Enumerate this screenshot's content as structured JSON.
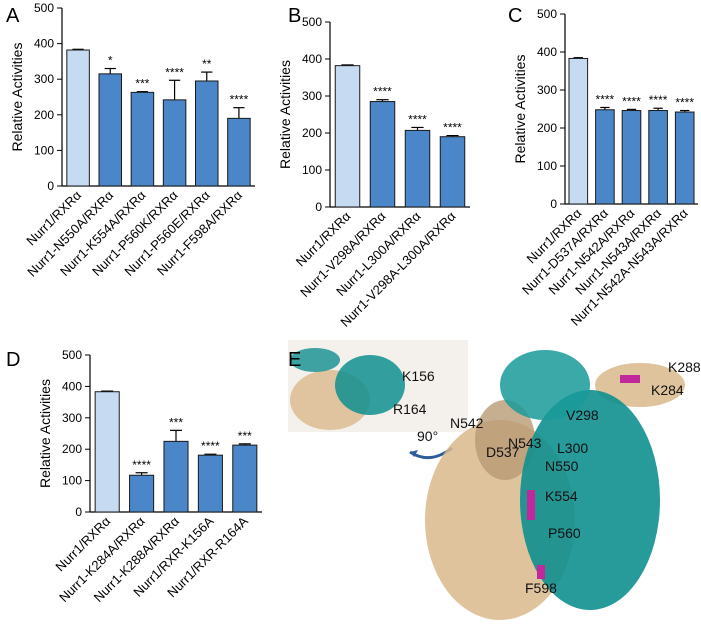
{
  "chart_data": [
    {
      "type": "bar",
      "panel": "A",
      "ylabel": "Relative Activities",
      "categories": [
        "Nurr1/RXRα",
        "Nurr1-N550A/RXRα",
        "Nurr1-K554A/RXRα",
        "Nurr1-P560K/RXRα",
        "Nurr1-P560E/RXRα",
        "Nurr1-F598A/RXRα"
      ],
      "values": [
        382,
        315,
        263,
        242,
        295,
        190
      ],
      "errors": [
        2,
        15,
        2,
        55,
        25,
        30
      ],
      "significance": [
        null,
        "*",
        "***",
        "****",
        "**",
        "****"
      ],
      "colors": [
        "#c6daf2",
        "#4a86c8",
        "#4a86c8",
        "#4a86c8",
        "#4a86c8",
        "#4a86c8"
      ],
      "ylim": [
        0,
        500
      ],
      "yticks": [
        0,
        100,
        200,
        300,
        400,
        500
      ]
    },
    {
      "type": "bar",
      "panel": "B",
      "ylabel": "Relative Activities",
      "categories": [
        "Nurr1/RXRα",
        "Nurr1-V298A/RXRα",
        "Nurr1-L300A/RXRα",
        "Nurr1-V298A-L300A/RXRα"
      ],
      "values": [
        382,
        285,
        207,
        190
      ],
      "errors": [
        2,
        5,
        8,
        3
      ],
      "significance": [
        null,
        "****",
        "****",
        "****"
      ],
      "colors": [
        "#c6daf2",
        "#4a86c8",
        "#4a86c8",
        "#4a86c8"
      ],
      "ylim": [
        0,
        500
      ],
      "yticks": [
        0,
        100,
        200,
        300,
        400,
        500
      ]
    },
    {
      "type": "bar",
      "panel": "C",
      "ylabel": "Relative Activities",
      "categories": [
        "Nurr1/RXRα",
        "Nurr1-D537A/RXRα",
        "Nurr1-N542A/RXRα",
        "Nurr1-N543A/RXRα",
        "Nurr1-N542A-N543A/RXRα"
      ],
      "values": [
        383,
        248,
        246,
        246,
        242
      ],
      "errors": [
        2,
        6,
        3,
        6,
        4
      ],
      "significance": [
        null,
        "****",
        "****",
        "****",
        "****"
      ],
      "colors": [
        "#c6daf2",
        "#4a86c8",
        "#4a86c8",
        "#4a86c8",
        "#4a86c8"
      ],
      "ylim": [
        0,
        500
      ],
      "yticks": [
        0,
        100,
        200,
        300,
        400,
        500
      ]
    },
    {
      "type": "bar",
      "panel": "D",
      "ylabel": "Relative Activities",
      "categories": [
        "Nurr1/RXRα",
        "Nurr1-K284A/RXRα",
        "Nurr1-K288A/RXRα",
        "Nurr1/RXR-K156A",
        "Nurr1/RXR-R164A"
      ],
      "values": [
        383,
        117,
        225,
        181,
        213
      ],
      "errors": [
        2,
        8,
        35,
        3,
        4
      ],
      "significance": [
        null,
        "****",
        "***",
        "****",
        "***"
      ],
      "colors": [
        "#c6daf2",
        "#4a86c8",
        "#4a86c8",
        "#4a86c8",
        "#4a86c8"
      ],
      "ylim": [
        0,
        500
      ],
      "yticks": [
        0,
        100,
        200,
        300,
        400,
        500
      ]
    }
  ],
  "structure": {
    "panel": "E",
    "labels": [
      "K156",
      "R164",
      "90°",
      "K288",
      "K284",
      "N542",
      "V298",
      "N543",
      "L300",
      "D537",
      "N550",
      "K554",
      "P560",
      "F598"
    ]
  }
}
